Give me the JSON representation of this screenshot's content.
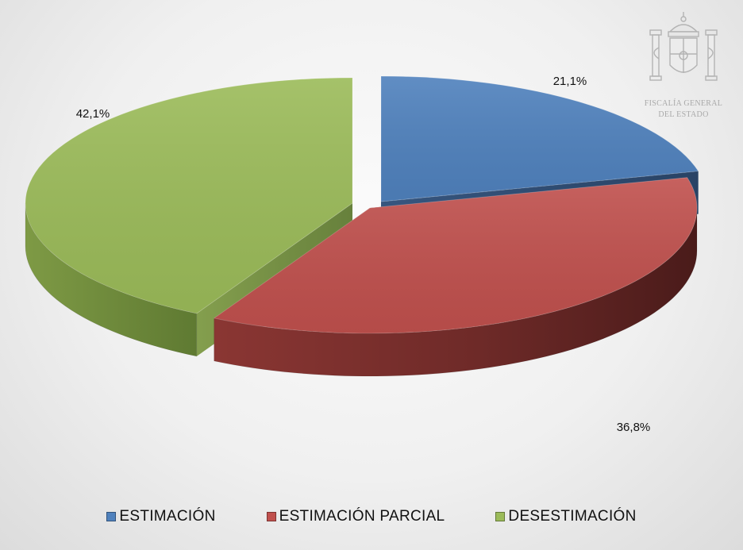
{
  "emblem": {
    "line1": "FISCALÍA GENERAL",
    "line2": "DEL ESTADO"
  },
  "chart_data": {
    "type": "pie",
    "categories": [
      "ESTIMACIÓN",
      "ESTIMACIÓN PARCIAL",
      "DESESTIMACIÓN"
    ],
    "values": [
      21.1,
      36.8,
      42.1
    ],
    "data_labels": [
      "21,1%",
      "36,8%",
      "42,1%"
    ],
    "colors": [
      "#4f81bd",
      "#c0504d",
      "#9bbb59"
    ],
    "legend_position": "bottom",
    "exploded": true,
    "style": "3d"
  }
}
